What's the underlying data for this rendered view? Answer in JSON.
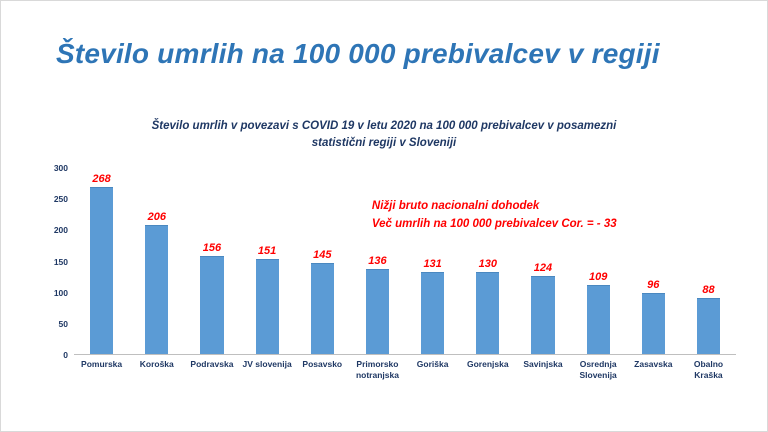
{
  "slide": {
    "title": "Število umrlih na 100 000 prebivalcev v regiji"
  },
  "chart_data": {
    "type": "bar",
    "title": "Število umrlih v povezavi s COVID 19 v letu 2020 na 100 000 prebivalcev v posamezni statistični regiji v Sloveniji",
    "categories": [
      "Pomurska",
      "Koroška",
      "Podravska",
      "JV slovenija",
      "Posavsko",
      "Primorsko notranjska",
      "Goriška",
      "Gorenjska",
      "Savinjska",
      "Osrednja Slovenija",
      "Zasavska",
      "Obalno Kraška"
    ],
    "values": [
      268,
      206,
      156,
      151,
      145,
      136,
      131,
      130,
      124,
      109,
      96,
      88
    ],
    "ylim": [
      0,
      300
    ],
    "yticks": [
      0,
      50,
      100,
      150,
      200,
      250,
      300
    ],
    "grid": false,
    "legend": false,
    "bar_color": "#5b9bd5",
    "value_label_color": "#ff0000",
    "title_color": "#1f3864",
    "slide_title_color": "#2e75b6",
    "annotation": {
      "color": "#ff0000",
      "lines": [
        "Nižji bruto nacionalni dohodek",
        "Več umrlih na 100  000 prebivalcev Cor. = - 33"
      ]
    }
  }
}
